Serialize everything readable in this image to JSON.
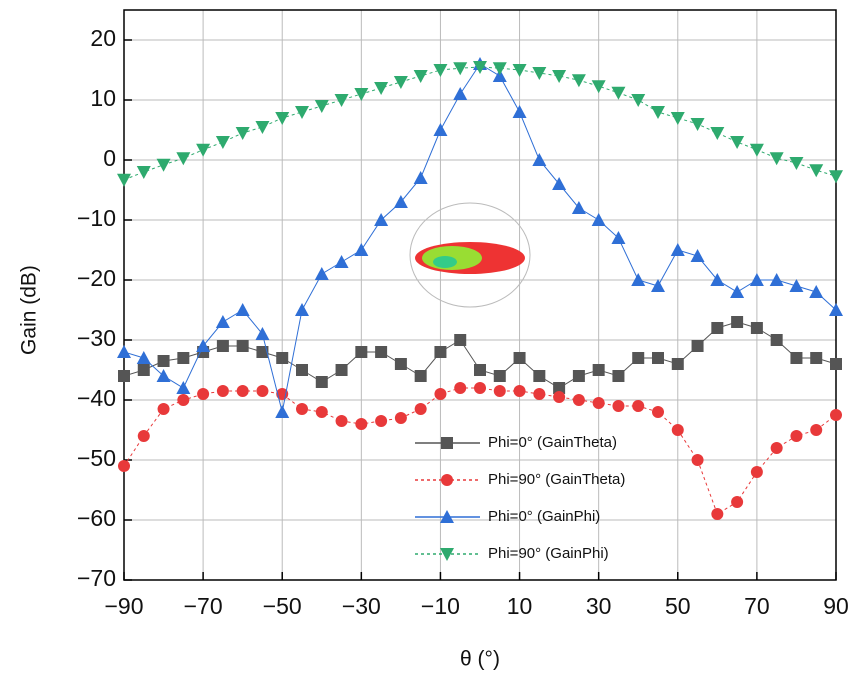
{
  "chart_data": {
    "type": "line",
    "x_label": "θ (°)",
    "y_label": "Gain (dB)",
    "xlim": [
      -90,
      90
    ],
    "ylim": [
      -70,
      25
    ],
    "xticks": [
      {
        "value": -90,
        "label": "−90"
      },
      {
        "value": -70,
        "label": "−70"
      },
      {
        "value": -50,
        "label": "−50"
      },
      {
        "value": -30,
        "label": "−30"
      },
      {
        "value": -10,
        "label": "−10"
      },
      10,
      30,
      50,
      70,
      90
    ],
    "yticks": [
      {
        "value": -70,
        "label": "−70"
      },
      {
        "value": -60,
        "label": "−60"
      },
      {
        "value": -50,
        "label": "−50"
      },
      {
        "value": -40,
        "label": "−40"
      },
      {
        "value": -30,
        "label": "−30"
      },
      {
        "value": -20,
        "label": "−20"
      },
      {
        "value": -10,
        "label": "−10"
      },
      0,
      10,
      20
    ],
    "grid": true,
    "x": [
      -90,
      -85,
      -80,
      -75,
      -70,
      -65,
      -60,
      -55,
      -50,
      -45,
      -40,
      -35,
      -30,
      -25,
      -20,
      -15,
      -10,
      -5,
      0,
      5,
      10,
      15,
      20,
      25,
      30,
      35,
      40,
      45,
      50,
      55,
      60,
      65,
      70,
      75,
      80,
      85,
      90
    ],
    "series": [
      {
        "name": "Phi=0° (GainTheta)",
        "color": "#555555",
        "marker": "square",
        "dash": "none",
        "values": [
          -36,
          -35,
          -33.5,
          -33,
          -32,
          -31,
          -31,
          -32,
          -33,
          -35,
          -37,
          -35,
          -32,
          -32,
          -34,
          -36,
          -32,
          -30,
          -35,
          -36,
          -33,
          -36,
          -38,
          -36,
          -35,
          -36,
          -33,
          -33,
          -34,
          -31,
          -28,
          -27,
          -28,
          -30,
          -33,
          -33,
          -34
        ]
      },
      {
        "name": "Phi=90° (GainTheta)",
        "color": "#e8393a",
        "marker": "circle",
        "dash": "3 3",
        "values": [
          -51,
          -46,
          -41.5,
          -40,
          -39,
          -38.5,
          -38.5,
          -38.5,
          -39,
          -41.5,
          -42,
          -43.5,
          -44,
          -43.5,
          -43,
          -41.5,
          -39,
          -38,
          -38,
          -38.5,
          -38.5,
          -39,
          -39.5,
          -40,
          -40.5,
          -41,
          -41,
          -42,
          -45,
          -50,
          -59,
          -57,
          -52,
          -48,
          -46,
          -45,
          -42.5
        ]
      },
      {
        "name": "Phi=0° (GainPhi)",
        "color": "#2f6fd6",
        "marker": "triangle-up",
        "dash": "none",
        "values": [
          -32,
          -33,
          -36,
          -38,
          -31,
          -27,
          -25,
          -29,
          -42,
          -25,
          -19,
          -17,
          -15,
          -10,
          -7,
          -3,
          5,
          11,
          16,
          14,
          8,
          0,
          -4,
          -8,
          -10,
          -13,
          -20,
          -21,
          -15,
          -16,
          -20,
          -22,
          -20,
          -20,
          -21,
          -22,
          -25
        ]
      },
      {
        "name": "Phi=90° (GainPhi)",
        "color": "#2eaa6e",
        "marker": "triangle-down",
        "dash": "3 3",
        "values": [
          -3.3,
          -2,
          -0.8,
          0.3,
          1.7,
          3,
          4.5,
          5.5,
          7,
          8,
          9,
          10,
          11,
          12,
          13,
          14,
          15,
          15.3,
          15.5,
          15.3,
          15,
          14.5,
          14,
          13.3,
          12.3,
          11.2,
          10,
          8,
          7,
          6,
          4.5,
          3,
          1.7,
          0.3,
          -0.5,
          -1.7,
          -2.7
        ]
      }
    ]
  }
}
